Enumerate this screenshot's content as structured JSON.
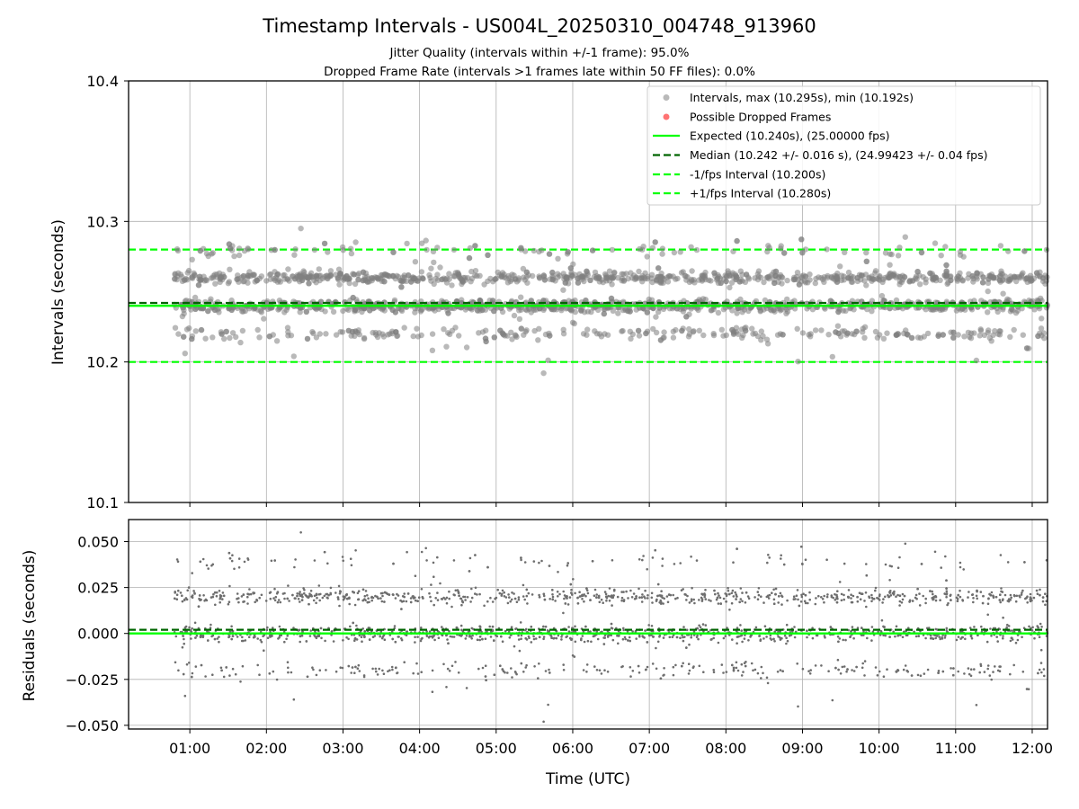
{
  "header": {
    "title": "Timestamp Intervals - US004L_20250310_004748_913960",
    "subtitle_1": "Jitter Quality (intervals within +/-1 frame): 95.0%",
    "subtitle_2": "Dropped Frame Rate (intervals >1 frames late within 50 FF files): 0.0%"
  },
  "chart_data": [
    {
      "type": "scatter",
      "panel": "top",
      "ylabel": "Intervals (seconds)",
      "ylim": [
        10.1,
        10.4
      ],
      "yticks": [
        "10.1",
        "10.2",
        "10.3",
        "10.4"
      ],
      "xlabel": "",
      "x_range_hours": [
        0.2,
        12.2
      ],
      "data_x_range_hours": [
        0.8,
        12.2
      ],
      "grid": true,
      "legend_placement": "upper right",
      "legend": [
        "Intervals, max (10.295s), min (10.192s)",
        "Possible Dropped Frames",
        "Expected (10.240s), (25.00000 fps)",
        "Median (10.242 +/- 0.016 s), (24.99423 +/- 0.04 fps)",
        "-1/fps Interval (10.200s)",
        "+1/fps Interval (10.280s)"
      ],
      "lines": {
        "expected": 10.24,
        "median": 10.242,
        "minus_one_fps": 10.2,
        "plus_one_fps": 10.28
      },
      "scatter_bands": [
        {
          "value": 10.22,
          "share": 0.12
        },
        {
          "value": 10.24,
          "share": 0.42
        },
        {
          "value": 10.26,
          "share": 0.38
        },
        {
          "value": 10.28,
          "share": 0.05
        }
      ],
      "scatter_count": 2300,
      "max": 10.295,
      "min": 10.192,
      "colors": {
        "points": "#808080",
        "dropped": "#ff0000",
        "expected": "#00ff00",
        "median": "#006400",
        "fps_bounds": "#00ff00"
      }
    },
    {
      "type": "scatter",
      "panel": "bottom",
      "ylabel": "Residuals (seconds)",
      "ylim": [
        -0.052,
        0.062
      ],
      "yticks": [
        "−0.050",
        "−0.025",
        "0.000",
        "0.025",
        "0.050"
      ],
      "ytick_values": [
        -0.05,
        -0.025,
        0.0,
        0.025,
        0.05
      ],
      "xlabel": "Time (UTC)",
      "xticks": [
        "01:00",
        "02:00",
        "03:00",
        "04:00",
        "05:00",
        "06:00",
        "07:00",
        "08:00",
        "09:00",
        "10:00",
        "11:00",
        "12:00"
      ],
      "xtick_hours": [
        1,
        2,
        3,
        4,
        5,
        6,
        7,
        8,
        9,
        10,
        11,
        12
      ],
      "x_range_hours": [
        0.2,
        12.2
      ],
      "grid": true,
      "lines": {
        "zero": 0.0,
        "median": 0.002
      },
      "max": 0.055,
      "min": -0.048
    }
  ]
}
